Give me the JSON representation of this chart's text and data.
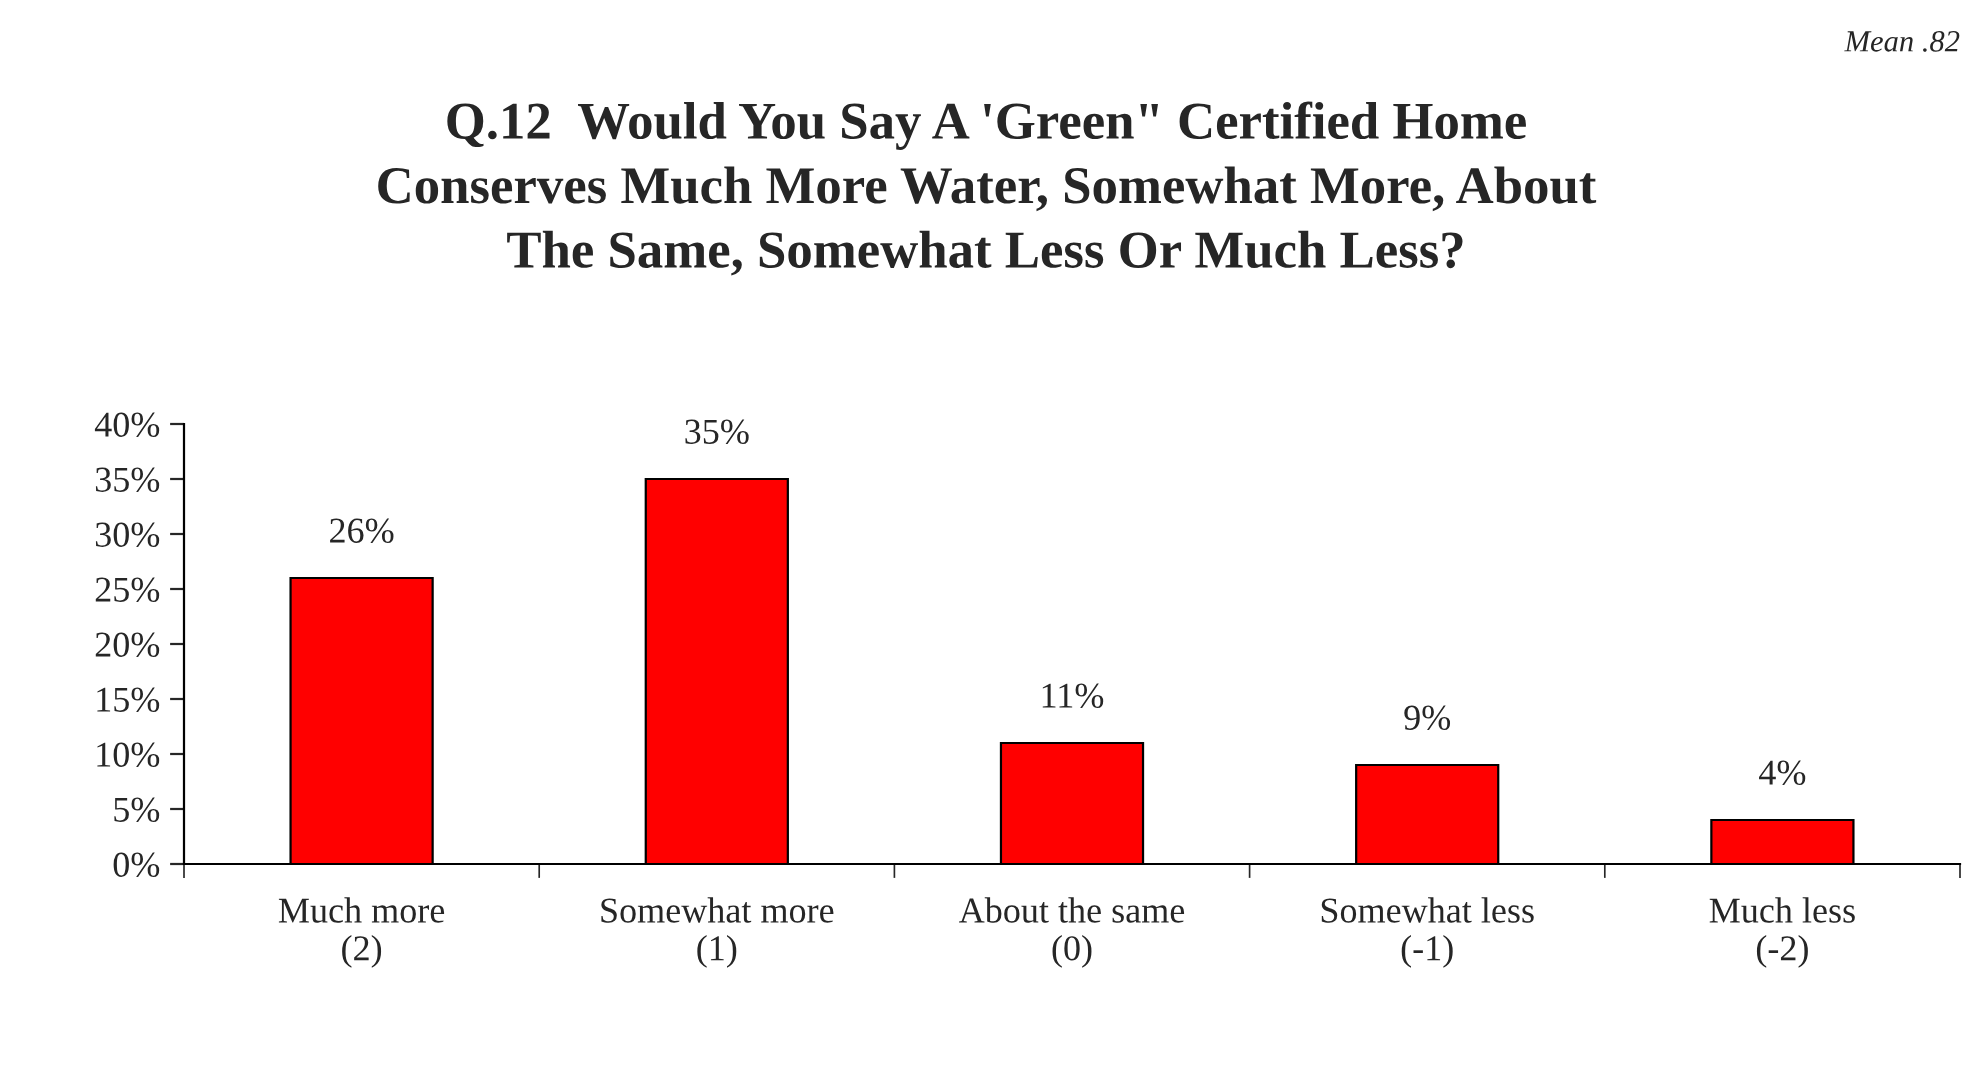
{
  "chart_data": {
    "type": "bar",
    "title": "Q.12  Would You Say A 'Green\" Certified Home\nConserves Much More Water, Somewhat More, About\nThe Same, Somewhat Less Or Much Less?",
    "categories": [
      "Much more\n(2)",
      "Somewhat more\n(1)",
      "About the same\n(0)",
      "Somewhat less\n(-1)",
      "Much less\n(-2)"
    ],
    "values": [
      26,
      35,
      11,
      9,
      4
    ],
    "value_labels": [
      "26%",
      "35%",
      "11%",
      "9%",
      "4%"
    ],
    "color": "#ff0000",
    "ylim": [
      0,
      40
    ],
    "yticks": [
      {
        "value": 0,
        "label": "0%"
      },
      {
        "value": 5,
        "label": "5%"
      },
      {
        "value": 10,
        "label": "10%"
      },
      {
        "value": 15,
        "label": "15%"
      },
      {
        "value": 20,
        "label": "20%"
      },
      {
        "value": 25,
        "label": "25%"
      },
      {
        "value": 30,
        "label": "30%"
      },
      {
        "value": 35,
        "label": "35%"
      },
      {
        "value": 40,
        "label": "40%"
      }
    ],
    "annotations": [
      "Mean .82"
    ],
    "grid": false,
    "legend": false
  }
}
